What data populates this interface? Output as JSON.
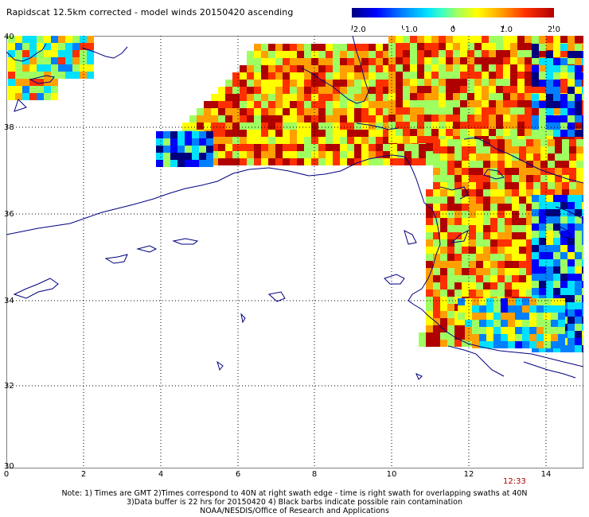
{
  "title": "Rapidscat 12.5km corrected - model winds 20150420 ascending",
  "colorbar": {
    "labels": [
      "-2.0",
      "-1.0",
      "0",
      "1.0",
      "2.0"
    ],
    "colors": [
      "#00007f",
      "#0000ff",
      "#0080ff",
      "#00e0ff",
      "#a0ff60",
      "#ffff00",
      "#ffa000",
      "#ff3000",
      "#b00000"
    ]
  },
  "map": {
    "y_labels": [
      "40",
      "38",
      "36",
      "34",
      "32",
      "30"
    ],
    "x_labels": [
      "0",
      "2",
      "4",
      "6",
      "8",
      "10",
      "12",
      "14"
    ],
    "lat_range": [
      30,
      40
    ],
    "lon_range": [
      0,
      15
    ],
    "coastline_color": "#00007f",
    "grid": "dotted"
  },
  "time_label": "12:33",
  "notes": [
    "Note: 1) Times are GMT 2)Times correspond to 40N at right swath edge - time is right swath for overlapping swaths at 40N",
    "3)Data buffer is 22 hrs for 20150420 4) Black barbs indicate possible rain contamination",
    "NOAA/NESDIS/Office of Research and Applications"
  ]
}
